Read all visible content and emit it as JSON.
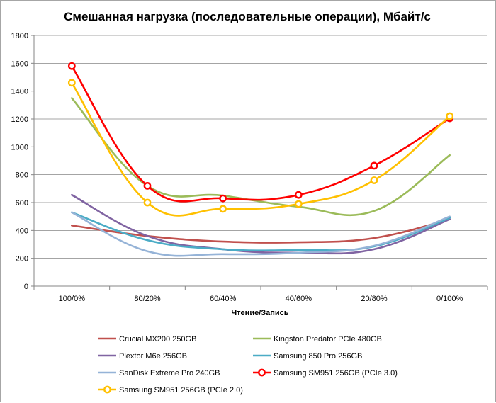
{
  "chart_data": {
    "type": "line",
    "title": "Смешанная нагрузка (последовательные операции), Мбайт/с",
    "xlabel": "Чтение/Запись",
    "ylabel": "",
    "categories": [
      "100/0%",
      "80/20%",
      "60/40%",
      "40/60%",
      "20/80%",
      "0/100%"
    ],
    "ylim": [
      0,
      1800
    ],
    "yticks": [
      0,
      200,
      400,
      600,
      800,
      1000,
      1200,
      1400,
      1600,
      1800
    ],
    "grid": true,
    "smooth": true,
    "legend_position": "bottom",
    "series": [
      {
        "name": "Crucial MX200 250GB",
        "color": "#c0504d",
        "marker": "none",
        "values": [
          435,
          360,
          320,
          315,
          345,
          480
        ]
      },
      {
        "name": "Kingston Predator PCIe 480GB",
        "color": "#9bbb59",
        "marker": "none",
        "values": [
          1350,
          720,
          650,
          570,
          540,
          940
        ]
      },
      {
        "name": "Plextor M6e 256GB",
        "color": "#8064a2",
        "marker": "none",
        "values": [
          655,
          360,
          265,
          240,
          265,
          480
        ]
      },
      {
        "name": "Samsung 850 Pro 256GB",
        "color": "#4bacc6",
        "marker": "none",
        "values": [
          530,
          330,
          265,
          260,
          285,
          490
        ]
      },
      {
        "name": "SanDisk Extreme Pro 240GB",
        "color": "#95b3d7",
        "marker": "none",
        "values": [
          530,
          250,
          230,
          240,
          290,
          500
        ]
      },
      {
        "name": "Samsung SM951 256GB (PCIe 3.0)",
        "color": "#ff0000",
        "marker": "circle",
        "values": [
          1580,
          720,
          630,
          655,
          865,
          1205
        ]
      },
      {
        "name": "Samsung SM951 256GB (PCIe 2.0)",
        "color": "#ffc000",
        "marker": "circle",
        "values": [
          1460,
          600,
          555,
          590,
          760,
          1220
        ]
      }
    ]
  }
}
